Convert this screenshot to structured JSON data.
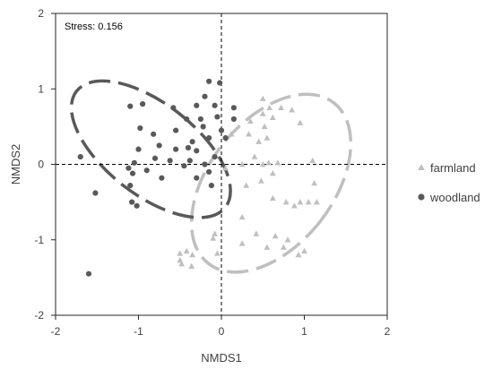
{
  "chart_data": {
    "type": "scatter",
    "title": "",
    "xlabel": "NMDS1",
    "ylabel": "NMDS2",
    "xlim": [
      -2,
      2
    ],
    "ylim": [
      -2,
      2
    ],
    "xticks": [
      "-2",
      "-1",
      "0",
      "1",
      "2"
    ],
    "yticks": [
      "-2",
      "-1",
      "0",
      "1",
      "2"
    ],
    "annotation": "Stress: 0.156",
    "grid": false,
    "reference_lines": {
      "x": 0,
      "y": 0,
      "style": "dashed"
    },
    "legend_position": "right",
    "series": [
      {
        "name": "farmland",
        "marker": "triangle",
        "color": "#bfbfbf",
        "ellipse": {
          "cx": 0.6,
          "cy": -0.25,
          "rx": 0.75,
          "ry": 1.35,
          "angle_deg": 38,
          "color": "#bfbfbf"
        },
        "points": [
          [
            0.5,
            0.87
          ],
          [
            0.58,
            0.75
          ],
          [
            0.5,
            0.67
          ],
          [
            0.72,
            0.75
          ],
          [
            0.62,
            0.62
          ],
          [
            0.35,
            0.57
          ],
          [
            0.52,
            0.5
          ],
          [
            0.85,
            0.72
          ],
          [
            0.95,
            0.55
          ],
          [
            0.55,
            0.35
          ],
          [
            0.33,
            0.4
          ],
          [
            0.45,
            0.3
          ],
          [
            0.25,
            0.0
          ],
          [
            0.5,
            0.0
          ],
          [
            0.4,
            0.1
          ],
          [
            0.57,
            0.02
          ],
          [
            0.68,
            0.02
          ],
          [
            0.62,
            -0.12
          ],
          [
            0.48,
            -0.22
          ],
          [
            0.3,
            -0.28
          ],
          [
            0.25,
            -0.7
          ],
          [
            0.05,
            -0.05
          ],
          [
            0.12,
            0.4
          ],
          [
            0.62,
            -0.45
          ],
          [
            0.78,
            -0.5
          ],
          [
            0.95,
            -0.5
          ],
          [
            1.12,
            -0.25
          ],
          [
            1.1,
            0.05
          ],
          [
            1.15,
            -0.5
          ],
          [
            1.05,
            -0.5
          ],
          [
            0.88,
            -0.55
          ],
          [
            0.8,
            -1.0
          ],
          [
            0.65,
            -0.95
          ],
          [
            0.93,
            -1.2
          ],
          [
            1.0,
            -1.15
          ],
          [
            0.75,
            -1.1
          ],
          [
            0.55,
            -1.1
          ],
          [
            0.42,
            -0.92
          ],
          [
            0.25,
            -1.05
          ],
          [
            -0.05,
            -1.18
          ],
          [
            -0.08,
            -0.92
          ],
          [
            -0.1,
            -0.98
          ],
          [
            -0.42,
            -1.15
          ],
          [
            -0.35,
            -1.2
          ],
          [
            -0.5,
            -1.18
          ],
          [
            -0.48,
            -1.32
          ],
          [
            -0.36,
            -1.35
          ],
          [
            -0.5,
            -1.27
          ]
        ]
      },
      {
        "name": "woodland",
        "marker": "circle",
        "color": "#595959",
        "ellipse": {
          "cx": -0.85,
          "cy": 0.2,
          "rx": 0.55,
          "ry": 1.25,
          "angle_deg": -52,
          "color": "#595959"
        },
        "points": [
          [
            -0.15,
            1.1
          ],
          [
            -0.02,
            1.08
          ],
          [
            -1.1,
            0.77
          ],
          [
            -0.95,
            0.8
          ],
          [
            -0.58,
            0.75
          ],
          [
            -0.3,
            0.78
          ],
          [
            -0.2,
            0.9
          ],
          [
            -0.08,
            0.78
          ],
          [
            0.15,
            0.75
          ],
          [
            -0.05,
            0.63
          ],
          [
            -0.42,
            0.6
          ],
          [
            0.15,
            0.6
          ],
          [
            -0.22,
            0.5
          ],
          [
            0.0,
            0.45
          ],
          [
            -0.98,
            0.48
          ],
          [
            -0.82,
            0.4
          ],
          [
            -0.55,
            0.45
          ],
          [
            -0.35,
            0.3
          ],
          [
            -0.15,
            0.35
          ],
          [
            0.05,
            0.35
          ],
          [
            -0.75,
            0.25
          ],
          [
            -0.55,
            0.2
          ],
          [
            -0.4,
            0.22
          ],
          [
            -0.3,
            0.18
          ],
          [
            -1.0,
            0.2
          ],
          [
            -0.8,
            0.08
          ],
          [
            -1.05,
            0.02
          ],
          [
            -0.62,
            0.05
          ],
          [
            -0.08,
            0.1
          ],
          [
            -0.2,
            0.0
          ],
          [
            -0.38,
            0.05
          ],
          [
            -0.45,
            -0.02
          ],
          [
            -0.15,
            -0.1
          ],
          [
            -1.12,
            -0.05
          ],
          [
            -1.07,
            -0.12
          ],
          [
            -0.9,
            -0.08
          ],
          [
            -0.3,
            -0.18
          ],
          [
            -0.72,
            -0.18
          ],
          [
            -0.12,
            -0.28
          ],
          [
            -1.7,
            0.1
          ],
          [
            -1.52,
            -0.38
          ],
          [
            -1.1,
            -0.28
          ],
          [
            -1.08,
            -0.5
          ],
          [
            -1.02,
            -0.55
          ],
          [
            -1.6,
            -1.45
          ],
          [
            -0.25,
            0.6
          ]
        ]
      }
    ]
  }
}
